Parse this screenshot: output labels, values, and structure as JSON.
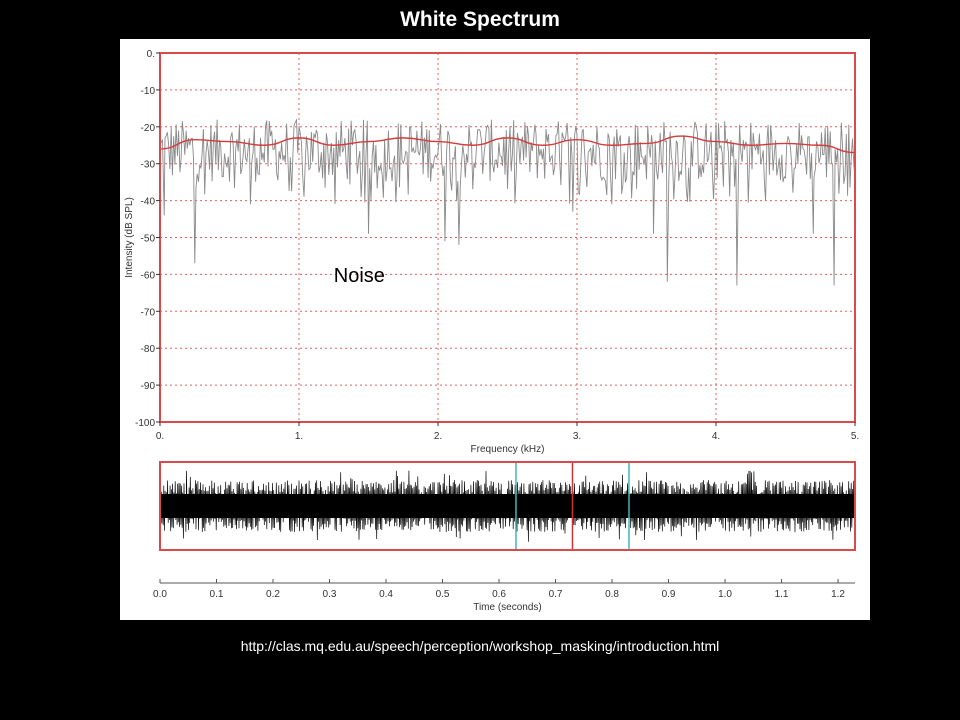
{
  "slide": {
    "title": "White Spectrum",
    "source_url": "http://clas.mq.edu.au/speech/perception/workshop_masking/introduction.html"
  },
  "colors": {
    "background": "#000000",
    "panel": "#ffffff",
    "frame_red": "#d94a4a",
    "grid_red": "#e06060",
    "spectrum_gray": "#8a8a8a",
    "envelope_red": "#d63b3b",
    "waveform_black": "#000000",
    "marker_cyan": "#3fb8b8",
    "marker_red": "#cc3333"
  },
  "chart_data": [
    {
      "type": "line",
      "name": "spectrum",
      "xlabel": "Frequency (kHz)",
      "ylabel": "Intensity (dB SPL)",
      "xlim": [
        0,
        5
      ],
      "ylim": [
        -100,
        0
      ],
      "x_ticks": [
        0,
        1,
        2,
        3,
        4,
        5
      ],
      "x_tick_labels": [
        "0.",
        "1.",
        "2.",
        "3.",
        "4.",
        "5."
      ],
      "y_ticks": [
        0,
        -10,
        -20,
        -30,
        -40,
        -50,
        -60,
        -70,
        -80,
        -90,
        -100
      ],
      "y_tick_labels": [
        "0.",
        "-10",
        "-20",
        "-30",
        "-40",
        "-50",
        "-60",
        "-70",
        "-80",
        "-90",
        "-100"
      ],
      "grid": true,
      "annotation": "Noise",
      "envelope": {
        "x": [
          0,
          0.25,
          0.5,
          0.75,
          1.0,
          1.25,
          1.5,
          1.75,
          2.0,
          2.25,
          2.5,
          2.75,
          3.0,
          3.25,
          3.5,
          3.75,
          4.0,
          4.25,
          4.5,
          4.75,
          5.0
        ],
        "y": [
          -26,
          -23.5,
          -24,
          -25,
          -23,
          -25,
          -24,
          -23,
          -24,
          -25,
          -23,
          -25,
          -23.5,
          -25,
          -24.5,
          -22.5,
          -24,
          -25,
          -24.5,
          -25,
          -27
        ]
      },
      "raw_spectrum": {
        "y_range": [
          -35,
          -18
        ],
        "dips": [
          {
            "x": 0.03,
            "y": -44
          },
          {
            "x": 0.25,
            "y": -57
          },
          {
            "x": 0.65,
            "y": -41
          },
          {
            "x": 1.5,
            "y": -49
          },
          {
            "x": 2.05,
            "y": -51
          },
          {
            "x": 2.15,
            "y": -52
          },
          {
            "x": 2.97,
            "y": -43
          },
          {
            "x": 3.25,
            "y": -41
          },
          {
            "x": 3.55,
            "y": -49
          },
          {
            "x": 3.65,
            "y": -62
          },
          {
            "x": 4.15,
            "y": -63
          },
          {
            "x": 4.7,
            "y": -49
          },
          {
            "x": 4.85,
            "y": -63
          }
        ]
      }
    },
    {
      "type": "line",
      "name": "waveform",
      "xlabel": "Time (seconds)",
      "xlim": [
        0,
        1.23
      ],
      "x_ticks": [
        0.0,
        0.1,
        0.2,
        0.3,
        0.4,
        0.5,
        0.6,
        0.7,
        0.8,
        0.9,
        1.0,
        1.1,
        1.2
      ],
      "x_tick_labels": [
        "0.0",
        "0.1",
        "0.2",
        "0.3",
        "0.4",
        "0.5",
        "0.6",
        "0.7",
        "0.8",
        "0.9",
        "1.0",
        "1.1",
        "1.2"
      ],
      "markers": [
        {
          "time": 0.63,
          "color": "#3fb8b8"
        },
        {
          "time": 0.73,
          "color": "#cc3333"
        },
        {
          "time": 0.83,
          "color": "#3fb8b8"
        }
      ]
    }
  ]
}
